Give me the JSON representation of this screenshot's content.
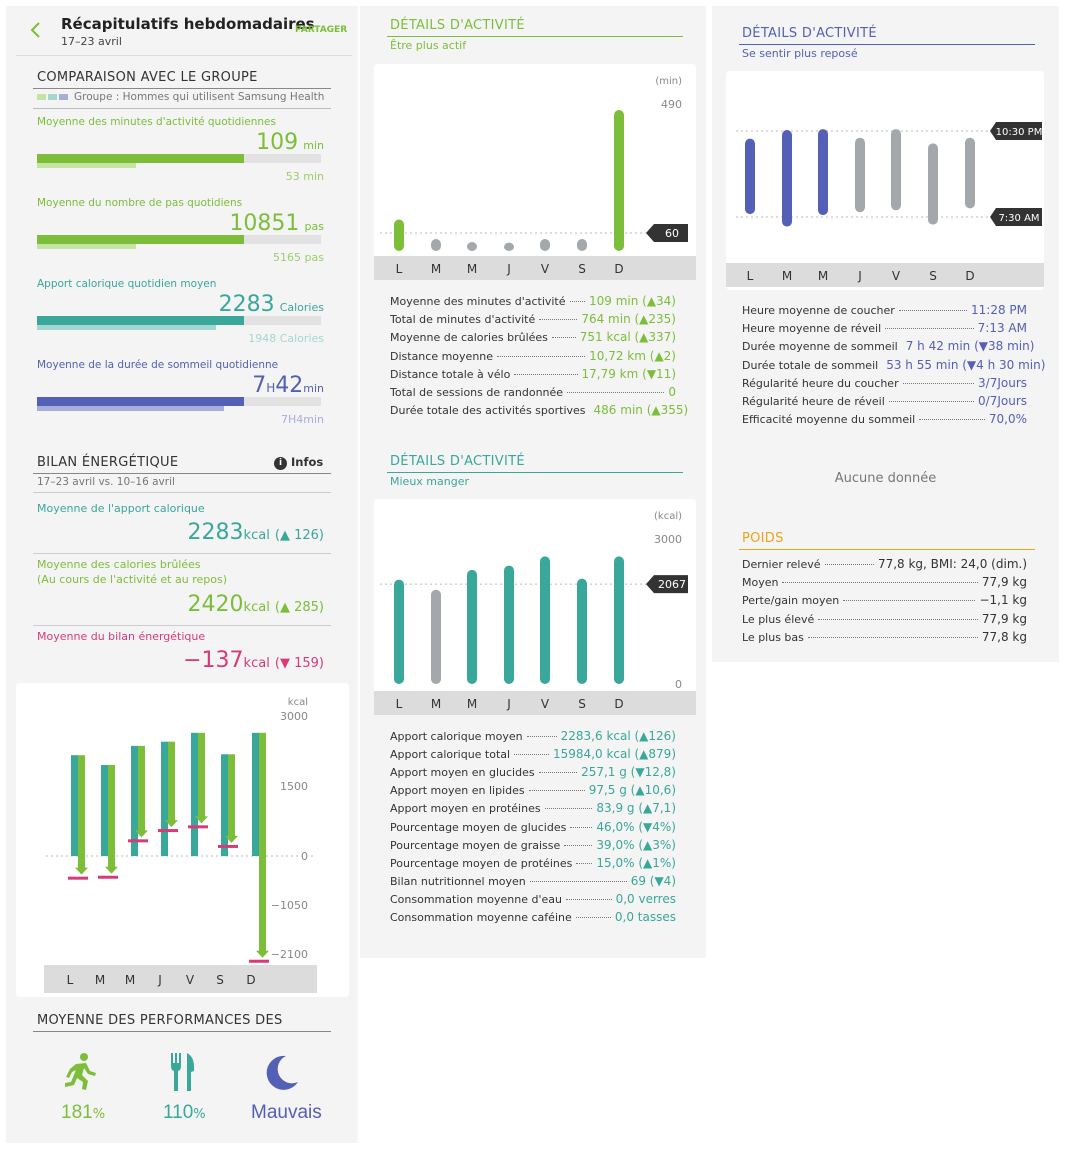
{
  "header": {
    "title": "Récapitulatifs hebdomadaires",
    "subtitle": "17–23 avril",
    "share": "PARTAGER"
  },
  "comparison": {
    "title": "COMPARAISON AVEC LE GROUPE",
    "group": "Groupe : Hommes qui utilisent Samsung Health",
    "items": [
      {
        "label": "Moyenne des minutes d'activité quotidiennes",
        "value": "109",
        "unit": "min",
        "group_value": "53 min",
        "user_fraction": 0.73,
        "group_fraction": 0.35,
        "color": "#7cbe3a",
        "light": "#c5e3a3"
      },
      {
        "label": "Moyenne du nombre de pas quotidiens",
        "value": "10851",
        "unit": "pas",
        "group_value": "5165 pas",
        "user_fraction": 0.73,
        "group_fraction": 0.35,
        "color": "#7cbe3a",
        "light": "#c5e3a3"
      },
      {
        "label": "Apport calorique quotidien moyen",
        "value": "2283",
        "unit": "Calories",
        "group_value": "1948 Calories",
        "user_fraction": 0.73,
        "group_fraction": 0.63,
        "color": "#39a79a",
        "light": "#a3d7cf"
      },
      {
        "label": "Moyenne de la durée de sommeil quotidienne",
        "value": "7",
        "value_unit_h": "H",
        "value2": "42",
        "unit": "min",
        "group_value": "7H4min",
        "user_fraction": 0.73,
        "group_fraction": 0.66,
        "color": "#5460b5",
        "light": "#a8aedc"
      }
    ]
  },
  "energy": {
    "title": "BILAN ÉNERGÉTIQUE",
    "info": "Infos",
    "period": "17–23 avril vs. 10–16 avril",
    "intake_label": "Moyenne de l'apport calorique",
    "intake_value": "2283",
    "intake_unit": "kcal",
    "intake_change": "(▲ 126)",
    "burn_label1": "Moyenne des calories brûlées",
    "burn_label2": "(Au cours de l'activité et au repos)",
    "burn_value": "2420",
    "burn_unit": "kcal",
    "burn_change": "(▲ 285)",
    "balance_label": "Moyenne du bilan énergétique",
    "balance_value": "−137",
    "balance_unit": "kcal",
    "balance_change": "(▼ 159)"
  },
  "energy_chart": {
    "unit": "kcal",
    "ticks": [
      "3000",
      "1500",
      "0",
      "−1050",
      "−2100"
    ],
    "days": [
      "L",
      "M",
      "M",
      "J",
      "V",
      "S",
      "D"
    ]
  },
  "performance": {
    "title": "MOYENNE DES PERFORMANCES DES",
    "activity": "181",
    "activity_unit": "%",
    "food": "110",
    "food_unit": "%",
    "sleep": "Mauvais"
  },
  "activity": {
    "title": "DÉTAILS D'ACTIVITÉ",
    "subtitle": "Être plus actif",
    "unit": "(min)",
    "top": "490",
    "target": "60",
    "days": [
      "L",
      "M",
      "M",
      "J",
      "V",
      "S",
      "D"
    ],
    "rows": [
      {
        "label": "Moyenne des minutes d'activité",
        "value": "109 min (▲34)"
      },
      {
        "label": "Total de minutes d'activité",
        "value": "764 min (▲235)"
      },
      {
        "label": "Moyenne de calories brûlées",
        "value": "751 kcal (▲337)"
      },
      {
        "label": "Distance moyenne",
        "value": "10,72 km (▲2)"
      },
      {
        "label": "Distance totale à vélo",
        "value": "17,79 km (▼11)"
      },
      {
        "label": "Total de sessions de randonnée",
        "value": "0"
      },
      {
        "label": "Durée totale des activités sportives",
        "value": "486 min (▲355)"
      }
    ]
  },
  "activity_chart": {
    "type": "bar",
    "categories": [
      "L",
      "M",
      "M",
      "J",
      "V",
      "S",
      "D"
    ],
    "values": [
      105,
      40,
      30,
      28,
      40,
      40,
      470
    ],
    "ylim": [
      0,
      490
    ],
    "target": 60,
    "highlight": [
      true,
      false,
      false,
      false,
      false,
      false,
      true
    ]
  },
  "food": {
    "title": "DÉTAILS D'ACTIVITÉ",
    "subtitle": "Mieux manger",
    "unit": "(kcal)",
    "top": "3000",
    "bottom": "0",
    "target": "2067",
    "days": [
      "L",
      "M",
      "M",
      "J",
      "V",
      "S",
      "D"
    ],
    "rows": [
      {
        "label": "Apport calorique moyen",
        "value": "2283,6 kcal (▲126)"
      },
      {
        "label": "Apport calorique total",
        "value": "15984,0 kcal (▲879)"
      },
      {
        "label": "Apport moyen en glucides",
        "value": "257,1 g (▼12,8)"
      },
      {
        "label": "Apport moyen en lipides",
        "value": "97,5 g (▲10,6)"
      },
      {
        "label": "Apport moyen en protéines",
        "value": "83,9 g (▲7,1)"
      },
      {
        "label": "Pourcentage moyen de glucides",
        "value": "46,0% (▼4%)"
      },
      {
        "label": "Pourcentage moyen de graisse",
        "value": "39,0% (▲3%)"
      },
      {
        "label": "Pourcentage moyen de protéines",
        "value": "15,0% (▲1%)"
      },
      {
        "label": "Bilan nutritionnel moyen",
        "value": "69 (▼4)"
      },
      {
        "label": "Consommation moyenne d'eau",
        "value": "0,0 verres"
      },
      {
        "label": "Consommation moyenne caféine",
        "value": "0,0 tasses"
      }
    ]
  },
  "food_chart": {
    "type": "bar",
    "categories": [
      "L",
      "M",
      "M",
      "J",
      "V",
      "S",
      "D"
    ],
    "values": [
      2160,
      1950,
      2360,
      2450,
      2640,
      2180,
      2640
    ],
    "ylim": [
      0,
      3000
    ],
    "target": 2067,
    "highlight": [
      true,
      false,
      true,
      true,
      true,
      true,
      true
    ]
  },
  "sleep": {
    "title": "DÉTAILS D'ACTIVITÉ",
    "subtitle": "Se sentir plus reposé",
    "bed_marker": "10:30 PM",
    "wake_marker": "7:30 AM",
    "days": [
      "L",
      "M",
      "M",
      "J",
      "V",
      "S",
      "D"
    ],
    "rows": [
      {
        "label": "Heure moyenne de coucher",
        "value": "11:28 PM"
      },
      {
        "label": "Heure moyenne de réveil",
        "value": "7:13 AM"
      },
      {
        "label": "Durée moyenne de sommeil",
        "value": "7 h 42 min (▼38 min)"
      },
      {
        "label": "Durée totale de sommeil",
        "value": "53 h 55 min (▼4 h 30 min)"
      },
      {
        "label": "Régularité heure du coucher",
        "value": "3/7Jours"
      },
      {
        "label": "Régularité heure de réveil",
        "value": "0/7Jours"
      },
      {
        "label": "Efficacité moyenne du sommeil",
        "value": "70,0%"
      }
    ],
    "no_data": "Aucune donnée"
  },
  "sleep_chart": {
    "type": "range",
    "categories": [
      "L",
      "M",
      "M",
      "J",
      "V",
      "S",
      "D"
    ],
    "bed_hours": [
      23.3,
      22.4,
      22.3,
      23.2,
      22.3,
      23.8,
      23.2
    ],
    "wake_hours": [
      7.2,
      8.5,
      7.3,
      7.0,
      6.8,
      8.3,
      6.6
    ],
    "highlight": [
      true,
      true,
      true,
      false,
      false,
      false,
      false
    ]
  },
  "weight": {
    "title": "POIDS",
    "rows": [
      {
        "label": "Dernier relevé",
        "value": "77,8 kg, BMI: 24,0 (dim.)"
      },
      {
        "label": "Moyen",
        "value": "77,9 kg"
      },
      {
        "label": "Perte/gain moyen",
        "value": "−1,1 kg"
      },
      {
        "label": "Le plus élevé",
        "value": "77,9 kg"
      },
      {
        "label": "Le plus bas",
        "value": "77,8 kg"
      }
    ]
  },
  "colors": {
    "green": "#7cbe3a",
    "teal": "#39a79a",
    "blue": "#5460b5",
    "pink": "#d83a78",
    "gray": "#a2a8ab"
  }
}
